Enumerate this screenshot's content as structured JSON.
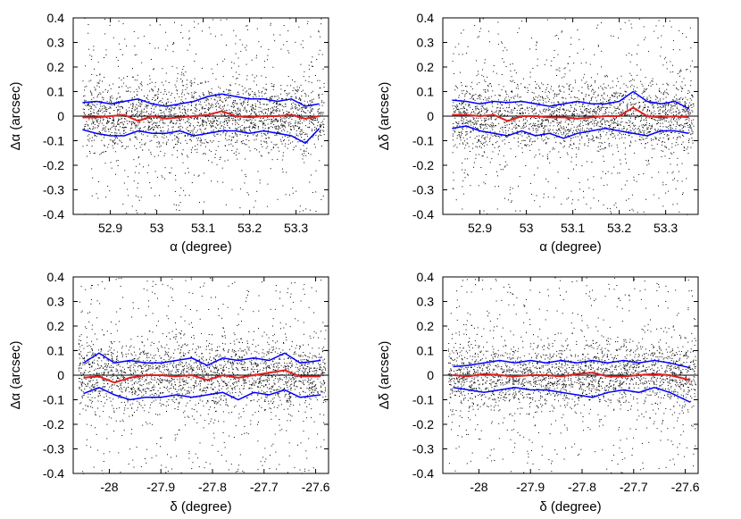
{
  "chart_data": [
    {
      "type": "scatter",
      "xlabel": "α (degree)",
      "ylabel": "Δα (arcsec)",
      "xlim": [
        52.82,
        53.37
      ],
      "ylim": [
        -0.4,
        0.4
      ],
      "xticks": [
        52.9,
        53.0,
        53.1,
        53.2,
        53.3
      ],
      "xtick_labels": [
        "52.9",
        "53",
        "53.1",
        "53.2",
        "53.3"
      ],
      "yticks": [
        -0.4,
        -0.3,
        -0.2,
        -0.1,
        0,
        0.1,
        0.2,
        0.3,
        0.4
      ],
      "ytick_labels": [
        "-0.4",
        "-0.3",
        "-0.2",
        "-0.1",
        "0",
        "0.1",
        "0.2",
        "0.3",
        "0.4"
      ],
      "series": [
        {
          "role": "points",
          "color": "#000000",
          "x_range": [
            52.84,
            53.36
          ],
          "y_center": 0,
          "y_spread": 0.07
        },
        {
          "role": "upper-envelope",
          "color": "#0000ff",
          "x": [
            52.84,
            52.87,
            52.9,
            52.93,
            52.96,
            52.99,
            53.02,
            53.05,
            53.08,
            53.11,
            53.14,
            53.17,
            53.2,
            53.23,
            53.26,
            53.29,
            53.32,
            53.35
          ],
          "y": [
            0.055,
            0.06,
            0.05,
            0.06,
            0.07,
            0.05,
            0.04,
            0.05,
            0.06,
            0.08,
            0.09,
            0.08,
            0.07,
            0.07,
            0.06,
            0.07,
            0.04,
            0.05
          ]
        },
        {
          "role": "mean",
          "color": "#e02020",
          "x": [
            52.84,
            52.87,
            52.9,
            52.93,
            52.96,
            52.99,
            53.02,
            53.05,
            53.08,
            53.11,
            53.14,
            53.17,
            53.2,
            53.23,
            53.26,
            53.29,
            53.32,
            53.35
          ],
          "y": [
            -0.005,
            -0.005,
            0.0,
            0.005,
            -0.02,
            0.0,
            -0.01,
            -0.005,
            0.0,
            0.005,
            0.02,
            0.0,
            -0.005,
            0.0,
            0.0,
            0.005,
            -0.01,
            0.0
          ]
        },
        {
          "role": "lower-envelope",
          "color": "#0000ff",
          "x": [
            52.84,
            52.87,
            52.9,
            52.93,
            52.96,
            52.99,
            53.02,
            53.05,
            53.08,
            53.11,
            53.14,
            53.17,
            53.2,
            53.23,
            53.26,
            53.29,
            53.32,
            53.35
          ],
          "y": [
            -0.055,
            -0.07,
            -0.08,
            -0.08,
            -0.06,
            -0.07,
            -0.07,
            -0.06,
            -0.08,
            -0.07,
            -0.06,
            -0.06,
            -0.07,
            -0.06,
            -0.07,
            -0.08,
            -0.11,
            -0.05
          ]
        }
      ]
    },
    {
      "type": "scatter",
      "xlabel": "α (degree)",
      "ylabel": "Δδ (arcsec)",
      "xlim": [
        52.82,
        53.37
      ],
      "ylim": [
        -0.4,
        0.4
      ],
      "xticks": [
        52.9,
        53.0,
        53.1,
        53.2,
        53.3
      ],
      "xtick_labels": [
        "52.9",
        "53",
        "53.1",
        "53.2",
        "53.3"
      ],
      "yticks": [
        -0.4,
        -0.3,
        -0.2,
        -0.1,
        0,
        0.1,
        0.2,
        0.3,
        0.4
      ],
      "ytick_labels": [
        "-0.4",
        "-0.3",
        "-0.2",
        "-0.1",
        "0",
        "0.1",
        "0.2",
        "0.3",
        "0.4"
      ],
      "series": [
        {
          "role": "points",
          "color": "#000000",
          "x_range": [
            52.84,
            53.36
          ],
          "y_center": 0,
          "y_spread": 0.07
        },
        {
          "role": "upper-envelope",
          "color": "#0000ff",
          "x": [
            52.84,
            52.87,
            52.9,
            52.93,
            52.96,
            52.99,
            53.02,
            53.05,
            53.08,
            53.11,
            53.14,
            53.17,
            53.2,
            53.23,
            53.26,
            53.29,
            53.32,
            53.35
          ],
          "y": [
            0.065,
            0.06,
            0.05,
            0.06,
            0.055,
            0.06,
            0.05,
            0.04,
            0.05,
            0.06,
            0.05,
            0.05,
            0.06,
            0.1,
            0.06,
            0.05,
            0.06,
            0.03
          ]
        },
        {
          "role": "mean",
          "color": "#e02020",
          "x": [
            52.84,
            52.87,
            52.9,
            52.93,
            52.96,
            52.99,
            53.02,
            53.05,
            53.08,
            53.11,
            53.14,
            53.17,
            53.2,
            53.23,
            53.26,
            53.29,
            53.32,
            53.35
          ],
          "y": [
            0.005,
            0.005,
            0.0,
            0.005,
            -0.02,
            0.0,
            0.0,
            -0.005,
            -0.005,
            -0.01,
            -0.005,
            0.0,
            0.0,
            0.035,
            0.0,
            -0.005,
            0.0,
            -0.005
          ]
        },
        {
          "role": "lower-envelope",
          "color": "#0000ff",
          "x": [
            52.84,
            52.87,
            52.9,
            52.93,
            52.96,
            52.99,
            53.02,
            53.05,
            53.08,
            53.11,
            53.14,
            53.17,
            53.2,
            53.23,
            53.26,
            53.29,
            53.32,
            53.35
          ],
          "y": [
            -0.05,
            -0.04,
            -0.06,
            -0.07,
            -0.08,
            -0.06,
            -0.08,
            -0.07,
            -0.09,
            -0.07,
            -0.06,
            -0.05,
            -0.06,
            -0.07,
            -0.08,
            -0.06,
            -0.06,
            -0.07
          ]
        }
      ]
    },
    {
      "type": "scatter",
      "xlabel": "δ (degree)",
      "ylabel": "Δα (arcsec)",
      "xlim": [
        -28.07,
        -27.575
      ],
      "ylim": [
        -0.4,
        0.4
      ],
      "xticks": [
        -28.0,
        -27.9,
        -27.8,
        -27.7,
        -27.6
      ],
      "xtick_labels": [
        "-28",
        "-27.9",
        "-27.8",
        "-27.7",
        "-27.6"
      ],
      "yticks": [
        -0.4,
        -0.3,
        -0.2,
        -0.1,
        0,
        0.1,
        0.2,
        0.3,
        0.4
      ],
      "ytick_labels": [
        "-0.4",
        "-0.3",
        "-0.2",
        "-0.1",
        "0",
        "0.1",
        "0.2",
        "0.3",
        "0.4"
      ],
      "series": [
        {
          "role": "points",
          "color": "#000000",
          "x_range": [
            -28.06,
            -27.58
          ],
          "y_center": 0,
          "y_spread": 0.07
        },
        {
          "role": "upper-envelope",
          "color": "#0000ff",
          "x": [
            -28.05,
            -28.02,
            -27.99,
            -27.96,
            -27.93,
            -27.9,
            -27.87,
            -27.84,
            -27.81,
            -27.78,
            -27.75,
            -27.72,
            -27.69,
            -27.66,
            -27.63,
            -27.59
          ],
          "y": [
            0.05,
            0.09,
            0.05,
            0.06,
            0.05,
            0.05,
            0.06,
            0.07,
            0.04,
            0.07,
            0.06,
            0.07,
            0.06,
            0.09,
            0.05,
            0.06
          ]
        },
        {
          "role": "mean",
          "color": "#e02020",
          "x": [
            -28.05,
            -28.02,
            -27.99,
            -27.96,
            -27.93,
            -27.9,
            -27.87,
            -27.84,
            -27.81,
            -27.78,
            -27.75,
            -27.72,
            -27.69,
            -27.66,
            -27.63,
            -27.59
          ],
          "y": [
            -0.01,
            -0.005,
            -0.03,
            -0.01,
            0.0,
            0.0,
            -0.005,
            0.0,
            -0.02,
            0.0,
            -0.01,
            0.0,
            0.01,
            0.02,
            -0.005,
            -0.005
          ]
        },
        {
          "role": "lower-envelope",
          "color": "#0000ff",
          "x": [
            -28.05,
            -28.02,
            -27.99,
            -27.96,
            -27.93,
            -27.9,
            -27.87,
            -27.84,
            -27.81,
            -27.78,
            -27.75,
            -27.72,
            -27.69,
            -27.66,
            -27.63,
            -27.59
          ],
          "y": [
            -0.075,
            -0.05,
            -0.08,
            -0.1,
            -0.09,
            -0.09,
            -0.08,
            -0.09,
            -0.08,
            -0.07,
            -0.1,
            -0.07,
            -0.08,
            -0.06,
            -0.09,
            -0.08
          ]
        }
      ]
    },
    {
      "type": "scatter",
      "xlabel": "δ (degree)",
      "ylabel": "Δδ (arcsec)",
      "xlim": [
        -28.07,
        -27.575
      ],
      "ylim": [
        -0.4,
        0.4
      ],
      "xticks": [
        -28.0,
        -27.9,
        -27.8,
        -27.7,
        -27.6
      ],
      "xtick_labels": [
        "-28",
        "-27.9",
        "-27.8",
        "-27.7",
        "-27.6"
      ],
      "yticks": [
        -0.4,
        -0.3,
        -0.2,
        -0.1,
        0,
        0.1,
        0.2,
        0.3,
        0.4
      ],
      "ytick_labels": [
        "-0.4",
        "-0.3",
        "-0.2",
        "-0.1",
        "0",
        "0.1",
        "0.2",
        "0.3",
        "0.4"
      ],
      "series": [
        {
          "role": "points",
          "color": "#000000",
          "x_range": [
            -28.06,
            -27.58
          ],
          "y_center": 0,
          "y_spread": 0.07
        },
        {
          "role": "upper-envelope",
          "color": "#0000ff",
          "x": [
            -28.05,
            -28.02,
            -27.99,
            -27.96,
            -27.93,
            -27.9,
            -27.87,
            -27.84,
            -27.81,
            -27.78,
            -27.75,
            -27.72,
            -27.69,
            -27.66,
            -27.63,
            -27.59
          ],
          "y": [
            0.035,
            0.04,
            0.05,
            0.06,
            0.05,
            0.06,
            0.05,
            0.06,
            0.05,
            0.06,
            0.05,
            0.06,
            0.05,
            0.06,
            0.05,
            0.03
          ]
        },
        {
          "role": "mean",
          "color": "#e02020",
          "x": [
            -28.05,
            -28.02,
            -27.99,
            -27.96,
            -27.93,
            -27.9,
            -27.87,
            -27.84,
            -27.81,
            -27.78,
            -27.75,
            -27.72,
            -27.69,
            -27.66,
            -27.63,
            -27.59
          ],
          "y": [
            0.0,
            -0.005,
            0.005,
            0.0,
            -0.005,
            0.0,
            0.0,
            -0.005,
            0.005,
            0.01,
            -0.005,
            -0.005,
            0.0,
            0.005,
            0.0,
            -0.02
          ]
        },
        {
          "role": "lower-envelope",
          "color": "#0000ff",
          "x": [
            -28.05,
            -28.02,
            -27.99,
            -27.96,
            -27.93,
            -27.9,
            -27.87,
            -27.84,
            -27.81,
            -27.78,
            -27.75,
            -27.72,
            -27.69,
            -27.66,
            -27.63,
            -27.59
          ],
          "y": [
            -0.05,
            -0.06,
            -0.07,
            -0.06,
            -0.05,
            -0.06,
            -0.06,
            -0.07,
            -0.08,
            -0.09,
            -0.07,
            -0.06,
            -0.07,
            -0.05,
            -0.07,
            -0.11
          ]
        }
      ]
    }
  ]
}
